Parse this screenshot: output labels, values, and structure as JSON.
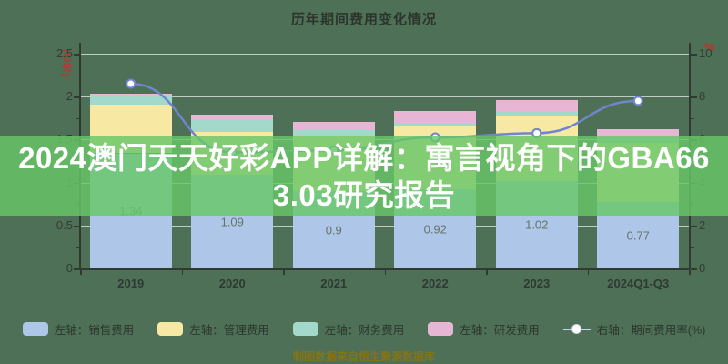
{
  "title": "历年期间费用变化情况",
  "overlay_banner": {
    "line1": "2024澳门天天好彩APP详解：寓言视角下的GBA66",
    "line2": "3.03研究报告",
    "bg_rgba": "rgba(104,199,104,0.82)",
    "text_color": "#ffffff"
  },
  "footer_note": "制图数据来自恒生聚源数据库",
  "colors": {
    "background": "#4e7056",
    "sales_bar": "#aec7e8",
    "admin_bar": "#f7e8a4",
    "finance_bar": "#a2d9cb",
    "rnd_bar": "#e7b6d5",
    "rate_line": "#7085cc",
    "marker_fill": "#ffffff",
    "axis_unit_red": "#b5372a",
    "grid_white": "#ffffff",
    "axis_dark": "#2f3a31"
  },
  "axes": {
    "left": {
      "unit": "(亿元)",
      "ticks": [
        "2.5",
        "2",
        "1.5",
        "1",
        "0.5",
        "0"
      ]
    },
    "right": {
      "unit": "%",
      "ticks": [
        "10",
        "8",
        "6",
        "4",
        "2",
        "0"
      ]
    }
  },
  "chart_data": {
    "type": "bar",
    "subtype": "stacked-bar-with-line",
    "title": "历年期间费用变化情况",
    "categories": [
      "2019",
      "2020",
      "2021",
      "2022",
      "2023",
      "2024Q1-Q3"
    ],
    "series": [
      {
        "name": "左轴：销售费用",
        "type": "bar",
        "axis": "left",
        "color": "#aec7e8",
        "values": [
          1.34,
          1.09,
          0.9,
          0.92,
          1.02,
          0.77
        ]
      },
      {
        "name": "左轴：管理费用",
        "type": "bar",
        "axis": "left",
        "color": "#f7e8a4",
        "values": [
          0.57,
          0.5,
          0.64,
          0.73,
          0.75,
          0.69
        ]
      },
      {
        "name": "左轴：财务费用",
        "type": "bar",
        "axis": "left",
        "color": "#a2d9cb",
        "values": [
          0.1,
          0.15,
          0.07,
          0.05,
          0.05,
          0.05
        ]
      },
      {
        "name": "左轴：研发费用",
        "type": "bar",
        "axis": "left",
        "color": "#e7b6d5",
        "values": [
          0.02,
          0.05,
          0.1,
          0.13,
          0.14,
          0.11
        ]
      },
      {
        "name": "右轴：期间费用率(%)",
        "type": "line",
        "axis": "right",
        "color": "#7085cc",
        "values": [
          8.6,
          5.4,
          5.5,
          6.1,
          6.3,
          7.8
        ]
      }
    ],
    "bar_labels": [
      "1.34",
      "1.09",
      "0.9",
      "0.92",
      "1.02",
      "0.77"
    ],
    "ylim_left": [
      0,
      2.5
    ],
    "ylim_right": [
      0,
      10
    ],
    "grid": true,
    "legend_position": "bottom"
  },
  "legend": {
    "items": [
      {
        "label": "左轴：销售费用",
        "color": "#aec7e8",
        "marker": "rect",
        "key": "sales"
      },
      {
        "label": "左轴：管理费用",
        "color": "#f7e8a4",
        "marker": "rect",
        "key": "admin"
      },
      {
        "label": "左轴：财务费用",
        "color": "#a2d9cb",
        "marker": "rect",
        "key": "finance"
      },
      {
        "label": "左轴：研发费用",
        "color": "#e7b6d5",
        "marker": "rect",
        "key": "rnd"
      },
      {
        "label": "右轴：期间费用率(%)",
        "color": "#ffffff",
        "marker": "line-dot",
        "key": "rate"
      }
    ]
  }
}
